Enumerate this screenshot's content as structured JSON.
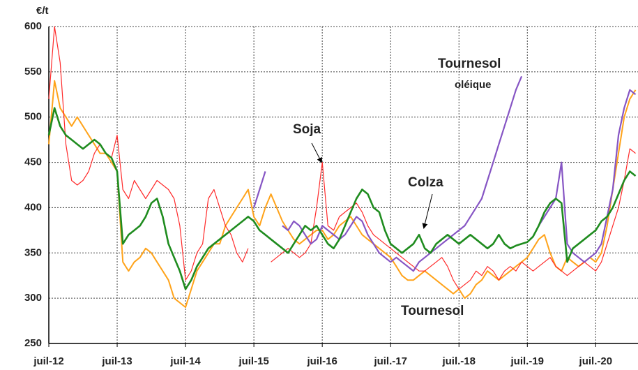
{
  "chart_data": {
    "type": "line",
    "y_label": "€/t",
    "categories": [
      "juil-12",
      null,
      null,
      null,
      null,
      null,
      null,
      null,
      null,
      null,
      null,
      null,
      "juil-13",
      null,
      null,
      null,
      null,
      null,
      null,
      null,
      null,
      null,
      null,
      null,
      "juil-14",
      null,
      null,
      null,
      null,
      null,
      null,
      null,
      null,
      null,
      null,
      null,
      "juil-15",
      null,
      null,
      null,
      null,
      null,
      null,
      null,
      null,
      null,
      null,
      null,
      "juil-16",
      null,
      null,
      null,
      null,
      null,
      null,
      null,
      null,
      null,
      null,
      null,
      "juil.-17",
      null,
      null,
      null,
      null,
      null,
      null,
      null,
      null,
      null,
      null,
      null,
      "juil.-18",
      null,
      null,
      null,
      null,
      null,
      null,
      null,
      null,
      null,
      null,
      null,
      "juil.-19",
      null,
      null,
      null,
      null,
      null,
      null,
      null,
      null,
      null,
      null,
      null,
      "juil.-20",
      null,
      null,
      null,
      null,
      null,
      null,
      null
    ],
    "ylim": [
      250,
      600
    ],
    "yticks": [
      250,
      300,
      350,
      400,
      450,
      500,
      550,
      600
    ],
    "grid": true,
    "series": [
      {
        "name": "Tournesol",
        "color": "#ffa31a",
        "values": [
          470,
          540,
          510,
          500,
          490,
          500,
          490,
          480,
          470,
          460,
          460,
          450,
          440,
          340,
          330,
          340,
          345,
          355,
          350,
          340,
          330,
          320,
          300,
          295,
          290,
          310,
          330,
          340,
          350,
          360,
          360,
          380,
          390,
          400,
          410,
          420,
          390,
          380,
          400,
          415,
          400,
          385,
          375,
          365,
          360,
          365,
          370,
          375,
          375,
          365,
          370,
          380,
          385,
          390,
          380,
          370,
          365,
          360,
          355,
          350,
          345,
          335,
          325,
          320,
          320,
          325,
          330,
          325,
          320,
          315,
          310,
          305,
          310,
          300,
          305,
          315,
          320,
          330,
          325,
          320,
          325,
          330,
          335,
          340,
          345,
          355,
          365,
          370,
          350,
          335,
          330,
          345,
          340,
          335,
          340,
          345,
          340,
          350,
          380,
          420,
          460,
          500,
          520,
          530
        ]
      },
      {
        "name": "Soja",
        "color": "#ff2a2a",
        "values": [
          520,
          600,
          560,
          470,
          430,
          425,
          430,
          440,
          460,
          470,
          460,
          455,
          480,
          420,
          410,
          430,
          420,
          410,
          420,
          430,
          425,
          420,
          410,
          380,
          320,
          330,
          350,
          360,
          410,
          420,
          400,
          380,
          370,
          350,
          340,
          355,
          null,
          null,
          null,
          340,
          345,
          350,
          355,
          350,
          345,
          350,
          360,
          400,
          450,
          380,
          375,
          390,
          395,
          400,
          405,
          395,
          380,
          370,
          365,
          360,
          355,
          350,
          345,
          340,
          335,
          330,
          330,
          335,
          340,
          345,
          335,
          320,
          310,
          315,
          320,
          330,
          325,
          335,
          330,
          320,
          330,
          335,
          330,
          340,
          335,
          330,
          335,
          340,
          345,
          335,
          330,
          325,
          330,
          335,
          340,
          335,
          330,
          340,
          360,
          380,
          400,
          430,
          465,
          460
        ]
      },
      {
        "name": "Tournesol",
        "subname": "oléique",
        "color": "#8655c4",
        "values": [
          null,
          null,
          null,
          null,
          null,
          null,
          null,
          null,
          null,
          null,
          null,
          null,
          null,
          null,
          null,
          null,
          null,
          null,
          null,
          null,
          null,
          null,
          null,
          null,
          null,
          null,
          null,
          null,
          null,
          null,
          null,
          null,
          null,
          null,
          null,
          null,
          400,
          420,
          440,
          null,
          null,
          380,
          375,
          385,
          380,
          370,
          360,
          365,
          380,
          375,
          370,
          365,
          370,
          380,
          390,
          385,
          370,
          360,
          350,
          345,
          340,
          345,
          340,
          335,
          330,
          340,
          345,
          350,
          355,
          360,
          365,
          370,
          375,
          380,
          390,
          400,
          410,
          430,
          450,
          470,
          490,
          510,
          530,
          545,
          null,
          null,
          380,
          390,
          400,
          410,
          450,
          360,
          350,
          345,
          340,
          345,
          350,
          360,
          390,
          420,
          480,
          510,
          530,
          525
        ]
      },
      {
        "name": "Colza",
        "color": "#1f8c1f",
        "values": [
          480,
          510,
          490,
          480,
          475,
          470,
          465,
          470,
          475,
          470,
          460,
          455,
          440,
          360,
          370,
          375,
          380,
          390,
          405,
          410,
          390,
          360,
          345,
          330,
          310,
          320,
          335,
          345,
          355,
          360,
          365,
          370,
          375,
          380,
          385,
          390,
          385,
          375,
          370,
          365,
          360,
          355,
          350,
          360,
          370,
          380,
          375,
          380,
          370,
          360,
          355,
          365,
          380,
          395,
          410,
          420,
          415,
          400,
          395,
          375,
          360,
          355,
          350,
          355,
          360,
          370,
          355,
          350,
          360,
          365,
          370,
          365,
          360,
          365,
          370,
          365,
          360,
          355,
          360,
          370,
          360,
          355,
          358,
          360,
          362,
          368,
          380,
          395,
          405,
          410,
          405,
          340,
          355,
          360,
          365,
          370,
          375,
          385,
          390,
          400,
          415,
          430,
          440,
          435
        ]
      }
    ]
  }
}
